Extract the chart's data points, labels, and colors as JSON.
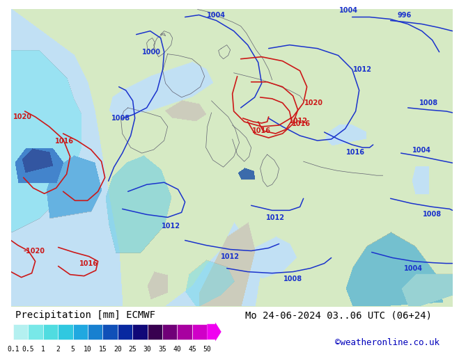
{
  "title_left": "Precipitation [mm] ECMWF",
  "title_right": "Mo 24-06-2024 03..06 UTC (06+24)",
  "credit": "©weatheronline.co.uk",
  "colorbar_levels": [
    0.1,
    0.5,
    1,
    2,
    5,
    10,
    15,
    20,
    25,
    30,
    35,
    40,
    45,
    50
  ],
  "colorbar_colors": [
    "#b4f0f0",
    "#78e8e8",
    "#50dce0",
    "#30c8e0",
    "#20a8e0",
    "#1880d0",
    "#1050b8",
    "#0828a0",
    "#100878",
    "#380050",
    "#700078",
    "#a800a0",
    "#d000c8",
    "#f000f0"
  ],
  "figure_bg": "#ffffff",
  "map_land_color": "#d8edc8",
  "map_sea_color": "#b8d8f0",
  "map_mountain_color": "#c8c8b8",
  "isobar_blue": "#1a32cc",
  "isobar_red": "#cc1818",
  "border_color": "#888888",
  "title_fontsize": 10,
  "label_fontsize": 7,
  "credit_color": "#0000bb",
  "credit_fontsize": 9
}
